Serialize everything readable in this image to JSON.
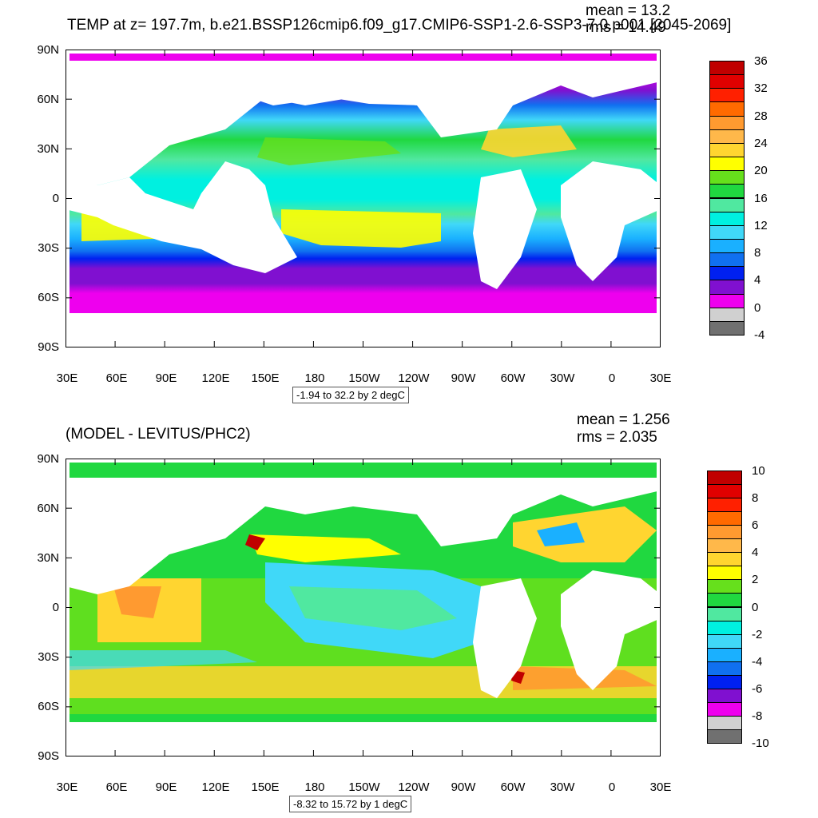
{
  "top": {
    "title": "TEMP at z= 197.7m, b.e21.BSSP126cmip6.f09_g17.CMIP6-SSP1-2.6-SSP3-7.0.p001 [2045-2069]",
    "mean": "mean = 13.2",
    "rms": "rms = 14.49",
    "range_label": "-1.94 to 32.2 by 2 degC",
    "colorbar_labels": [
      "36",
      "32",
      "28",
      "24",
      "20",
      "16",
      "12",
      "8",
      "4",
      "0",
      "-4"
    ],
    "colorbar_colors": [
      "#c00000",
      "#e00000",
      "#ff2000",
      "#ff6a00",
      "#ff9a30",
      "#ffb84a",
      "#ffd530",
      "#ffff00",
      "#66e01c",
      "#20d840",
      "#50e8a0",
      "#00f0e0",
      "#40d8f8",
      "#1ab0ff",
      "#1070f0",
      "#0020f0",
      "#8010d0",
      "#ee00ee",
      "#d0d0d0",
      "#707070"
    ]
  },
  "bottom": {
    "title": "(MODEL - LEVITUS/PHC2)",
    "mean": "mean = 1.256",
    "rms": "rms = 2.035",
    "range_label": "-8.32 to 15.72 by 1 degC",
    "colorbar_labels": [
      "10",
      "8",
      "6",
      "4",
      "2",
      "0",
      "-2",
      "-4",
      "-6",
      "-8",
      "-10"
    ],
    "colorbar_colors": [
      "#c00000",
      "#e00000",
      "#ff2000",
      "#ff6a00",
      "#ff9a30",
      "#ffb84a",
      "#ffd530",
      "#ffff00",
      "#66e01c",
      "#20d840",
      "#50e8a0",
      "#00f0e0",
      "#40d8f8",
      "#1ab0ff",
      "#1070f0",
      "#0020f0",
      "#8010d0",
      "#ee00ee",
      "#d0d0d0",
      "#707070"
    ]
  },
  "axes": {
    "lat_labels": [
      "90N",
      "60N",
      "30N",
      "0",
      "30S",
      "60S",
      "90S"
    ],
    "lon_labels": [
      "30E",
      "60E",
      "90E",
      "120E",
      "150E",
      "180",
      "150W",
      "120W",
      "90W",
      "60W",
      "30W",
      "0",
      "30E"
    ]
  }
}
